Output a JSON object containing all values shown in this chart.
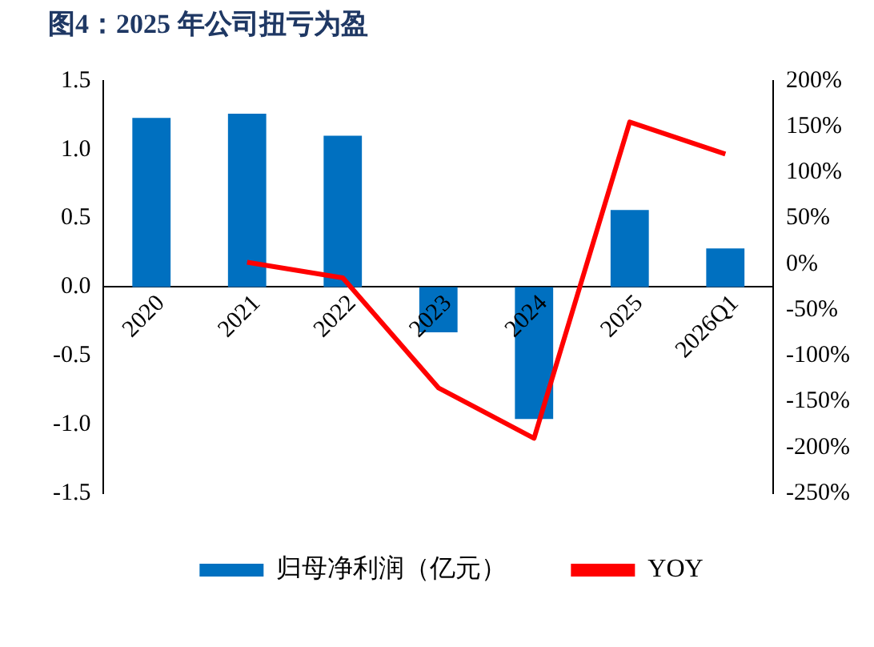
{
  "chart_data": {
    "type": "bar",
    "title": "图4：2025 年公司扭亏为盈",
    "categories": [
      "2020",
      "2021",
      "2022",
      "2023",
      "2024",
      "2025",
      "2026Q1"
    ],
    "series": [
      {
        "name": "归母净利润（亿元）",
        "color": "#0070c0",
        "values": [
          1.23,
          1.26,
          1.1,
          -0.33,
          -0.96,
          0.56,
          0.28
        ]
      },
      {
        "name": "YOY",
        "type": "line",
        "axis": "y2",
        "color": "#ff0000",
        "values": [
          null,
          2,
          -15,
          -135,
          -190,
          155,
          120
        ]
      }
    ],
    "ylim": [
      -1.5,
      1.5
    ],
    "yticks": [
      {
        "value": 1.5,
        "label": "1.5"
      },
      {
        "value": 1,
        "label": "1.0"
      },
      {
        "value": 0.5,
        "label": "0.5"
      },
      {
        "value": 0,
        "label": "0.0"
      },
      {
        "value": -0.5,
        "label": "-0.5"
      },
      {
        "value": -1,
        "label": "-1.0"
      },
      {
        "value": -1.5,
        "label": "-1.5"
      }
    ],
    "y2lim": [
      -250,
      200
    ],
    "y2ticks": [
      {
        "value": 200,
        "label": "200%"
      },
      {
        "value": 150,
        "label": "150%"
      },
      {
        "value": 100,
        "label": "100%"
      },
      {
        "value": 50,
        "label": "50%"
      },
      {
        "value": 0,
        "label": "0%"
      },
      {
        "value": -50,
        "label": "-50%"
      },
      {
        "value": -100,
        "label": "-100%"
      },
      {
        "value": -150,
        "label": "-150%"
      },
      {
        "value": -200,
        "label": "-200%"
      },
      {
        "value": -250,
        "label": "-250%"
      }
    ],
    "grid": false,
    "legend": "bottom",
    "marker": "none",
    "line_style": "solid"
  }
}
